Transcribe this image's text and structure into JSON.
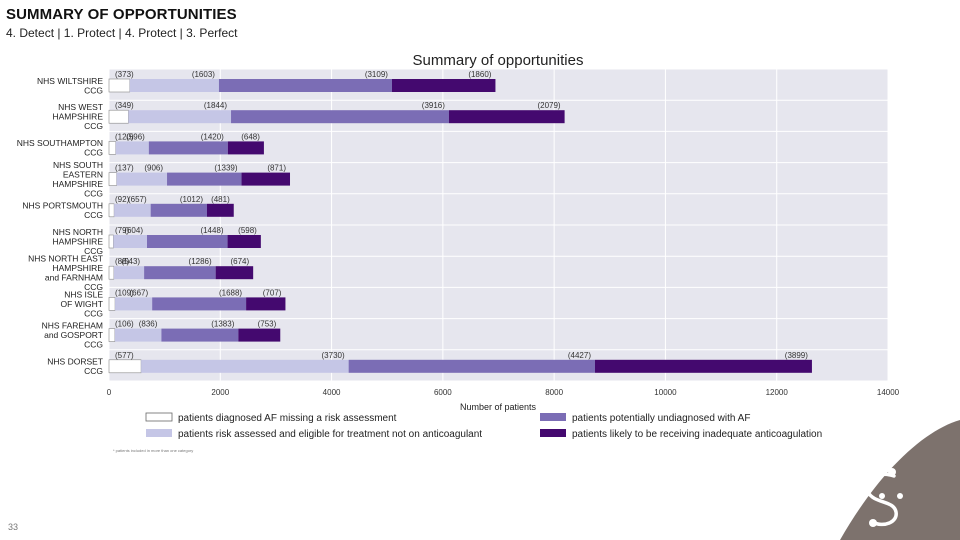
{
  "slide": {
    "title": "SUMMARY OF OPPORTUNITIES",
    "subtitle": "4. Detect | 1. Protect | 4. Protect | 3. Perfect",
    "page_number": "33",
    "footnote": "* patients included in more than one category",
    "accent_color": "#7d726d"
  },
  "chart_data": {
    "type": "bar",
    "orientation": "horizontal",
    "stacked": true,
    "title": "Summary of opportunities",
    "xlabel": "Number of patients",
    "ylabel": "",
    "xlim": [
      0,
      14000
    ],
    "xticks": [
      0,
      2000,
      4000,
      6000,
      8000,
      10000,
      12000,
      14000
    ],
    "grid": true,
    "legend_position": "bottom",
    "categories": [
      [
        "NHS WILTSHIRE",
        "CCG"
      ],
      [
        "NHS WEST",
        "HAMPSHIRE",
        "CCG"
      ],
      [
        "NHS SOUTHAMPTON",
        "CCG"
      ],
      [
        "NHS SOUTH",
        "EASTERN",
        "HAMPSHIRE",
        "CCG"
      ],
      [
        "NHS PORTSMOUTH",
        "CCG"
      ],
      [
        "NHS NORTH",
        "HAMPSHIRE",
        "CCG"
      ],
      [
        "NHS NORTH EAST",
        "HAMPSHIRE",
        "and FARNHAM",
        "CCG"
      ],
      [
        "NHS ISLE",
        "OF WIGHT",
        "CCG"
      ],
      [
        "NHS FAREHAM",
        "and GOSPORT",
        "CCG"
      ],
      [
        "NHS DORSET",
        "CCG"
      ]
    ],
    "series": [
      {
        "name": "patients diagnosed AF missing a risk assessment",
        "color": "#ffffff",
        "values": [
          373,
          349,
          120,
          137,
          92,
          79,
          88,
          109,
          106,
          577
        ],
        "labels": [
          "(373)",
          "(349)",
          "(120)",
          "(137)",
          "(92)",
          "(79)",
          "(88)",
          "(109)",
          "(106)",
          "(577)"
        ]
      },
      {
        "name": "patients risk assessed and eligible for treatment not on anticoagulant",
        "color": "#c5c6e6",
        "values": [
          1603,
          1844,
          596,
          906,
          657,
          604,
          543,
          667,
          836,
          3730
        ],
        "labels": [
          "(1603)",
          "(1844)",
          "(596)",
          "(906)",
          "(657)",
          "(604)",
          "(543)",
          "(667)",
          "(836)",
          "(3730)"
        ]
      },
      {
        "name": "patients potentially undiagnosed with AF",
        "color": "#7b6db5",
        "values": [
          3109,
          3916,
          1420,
          1339,
          1012,
          1448,
          1286,
          1688,
          1383,
          4427
        ],
        "labels": [
          "(3109)",
          "(3916)",
          "(1420)",
          "(1339)",
          "(1012)",
          "(1448)",
          "(1286)",
          "(1688)",
          "(1383)",
          "(4427)"
        ]
      },
      {
        "name": "patients likely to be receiving inadequate anticoagulation",
        "color": "#44096f",
        "values": [
          1860,
          2079,
          648,
          871,
          481,
          598,
          674,
          707,
          753,
          3899
        ],
        "labels": [
          "(1860)",
          "(2079)",
          "(648)",
          "(871)",
          "(481)",
          "(598)",
          "(674)",
          "(707)",
          "(753)",
          "(3899)"
        ]
      }
    ]
  }
}
